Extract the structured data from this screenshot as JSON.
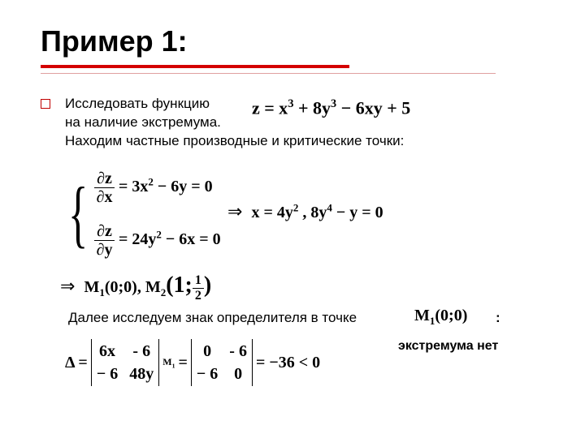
{
  "title": "Пример 1:",
  "bullet_text": {
    "line1a": "Исследовать функцию",
    "line2": "на наличие экстремума.",
    "line3": "Находим частные производные и критические точки:"
  },
  "eq_main": {
    "lhs": "z = x",
    "e1": "3",
    "p2a": " + 8y",
    "e2": "3",
    "p3": " − 6xy + 5"
  },
  "system": {
    "dz": "∂z",
    "dx": "∂x",
    "dy": "∂y",
    "rhs1a": " = 3x",
    "rhs1e": "2",
    "rhs1b": " − 6y = 0",
    "rhs2a": " = 24y",
    "rhs2e": "2",
    "rhs2b": " − 6x = 0"
  },
  "result1": {
    "a": "x = 4y",
    "e": "2",
    "b": " ,   8y",
    "e2": "4",
    "c": " − y = 0"
  },
  "points": {
    "m1": "M",
    "m1sub": "1",
    "m1p": "(0;0)",
    "sep": ",",
    "m2": "M",
    "m2sub": "2",
    "m2p_pre": "(1;",
    "m2p_num": "1",
    "m2p_den": "2",
    "m2p_post": ")"
  },
  "line2_text": "Далее исследуем знак определителя в точке",
  "point_m1_again": {
    "m": "M",
    "sub": "1",
    "p": "(0;0)"
  },
  "colon": ":",
  "determinant": {
    "delta": "Δ =",
    "a": "6x",
    "b": "- 6",
    "c": "− 6",
    "d": "48y",
    "d_sub": "M",
    "d_sub2": "1",
    "eq": " =",
    "a2": "0",
    "b2": "- 6",
    "c2": "− 6",
    "d2": "0",
    "final": " = −36 < 0"
  },
  "conclusion": "экстремума нет"
}
